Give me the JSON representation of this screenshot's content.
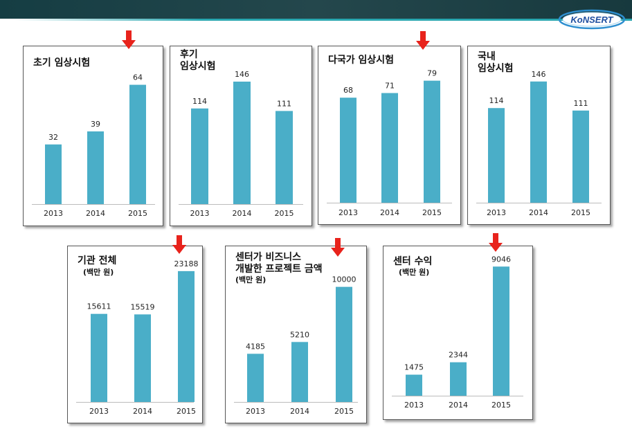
{
  "header": {
    "logo_text": "KoNSERT"
  },
  "colors": {
    "bar": "#4aaec8",
    "arrow": "#e8231c",
    "header": "#1e4349",
    "accent": "#2aa7b0"
  },
  "chart_data": [
    {
      "type": "bar",
      "title": "초기 임상시험",
      "subtitle": "",
      "categories": [
        "2013",
        "2014",
        "2015"
      ],
      "values": [
        32,
        39,
        64
      ],
      "ylim": [
        0,
        72
      ],
      "highlight": "2015"
    },
    {
      "type": "bar",
      "title": "후기\n임상시험",
      "subtitle": "",
      "categories": [
        "2013",
        "2014",
        "2015"
      ],
      "values": [
        114,
        146,
        111
      ],
      "ylim": [
        0,
        160
      ],
      "highlight": ""
    },
    {
      "type": "bar",
      "title": "다국가 임상시험",
      "subtitle": "",
      "categories": [
        "2013",
        "2014",
        "2015"
      ],
      "values": [
        68,
        71,
        79
      ],
      "ylim": [
        0,
        86
      ],
      "highlight": "2015"
    },
    {
      "type": "bar",
      "title": "국내\n임상시험",
      "subtitle": "",
      "categories": [
        "2013",
        "2014",
        "2015"
      ],
      "values": [
        114,
        146,
        111
      ],
      "ylim": [
        0,
        160
      ],
      "highlight": ""
    },
    {
      "type": "bar",
      "title": "기관 전체",
      "subtitle": "(백만 원)",
      "categories": [
        "2013",
        "2014",
        "2015"
      ],
      "values": [
        15611,
        15519,
        23188
      ],
      "ylim": [
        0,
        24400
      ],
      "highlight": "2015"
    },
    {
      "type": "bar",
      "title": "센터가 비즈니스\n개발한 프로젝트 금액",
      "subtitle": "(백만 원)",
      "categories": [
        "2013",
        "2014",
        "2015"
      ],
      "values": [
        4185,
        5210,
        10000
      ],
      "ylim": [
        0,
        11300
      ],
      "highlight": "2015"
    },
    {
      "type": "bar",
      "title": "센터 수익",
      "subtitle": "(백만 원)",
      "categories": [
        "2013",
        "2014",
        "2015"
      ],
      "values": [
        1475,
        2344,
        9046
      ],
      "ylim": [
        0,
        9400
      ],
      "highlight": "2015"
    }
  ]
}
